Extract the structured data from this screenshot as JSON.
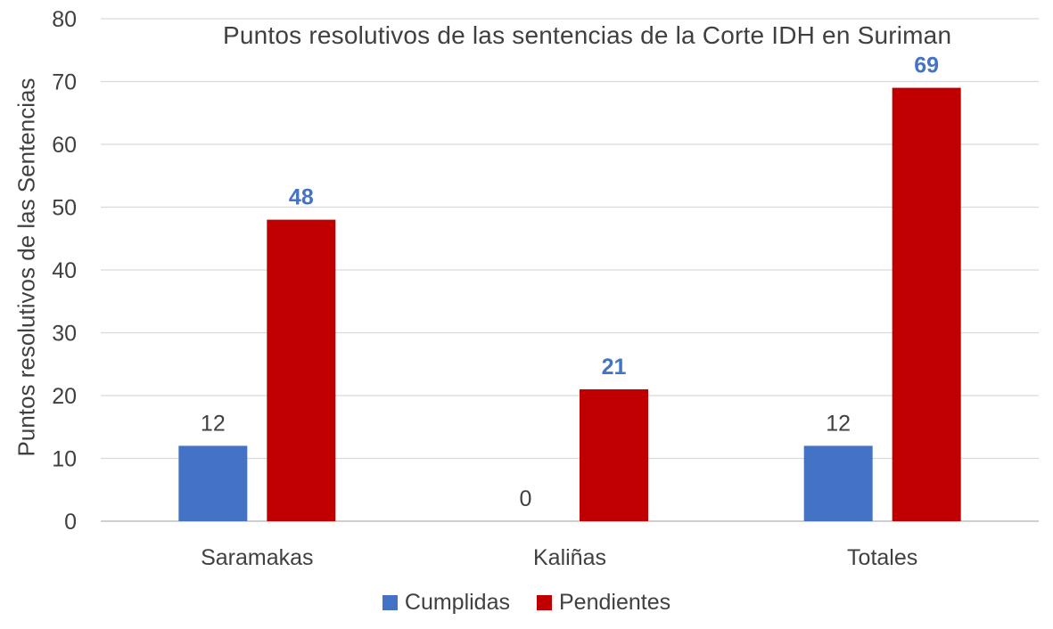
{
  "chart_data": {
    "type": "bar",
    "title": "Puntos resolutivos de las sentencias de la Corte IDH en Suriman",
    "xlabel": "",
    "ylabel": "Puntos resolutivos de las Sentencias",
    "categories": [
      "Saramakas",
      "Kaliñas",
      "Totales"
    ],
    "series": [
      {
        "name": "Cumplidas",
        "values": [
          12,
          0,
          12
        ],
        "color": "#4472C4",
        "label_color": "#404040",
        "label_bold": false
      },
      {
        "name": "Pendientes",
        "values": [
          48,
          21,
          69
        ],
        "color": "#C00000",
        "label_color": "#4472C4",
        "label_bold": true
      }
    ],
    "ylim": [
      0,
      80
    ],
    "yticks": [
      0,
      10,
      20,
      30,
      40,
      50,
      60,
      70,
      80
    ],
    "grid": true,
    "legend": "bottom"
  }
}
